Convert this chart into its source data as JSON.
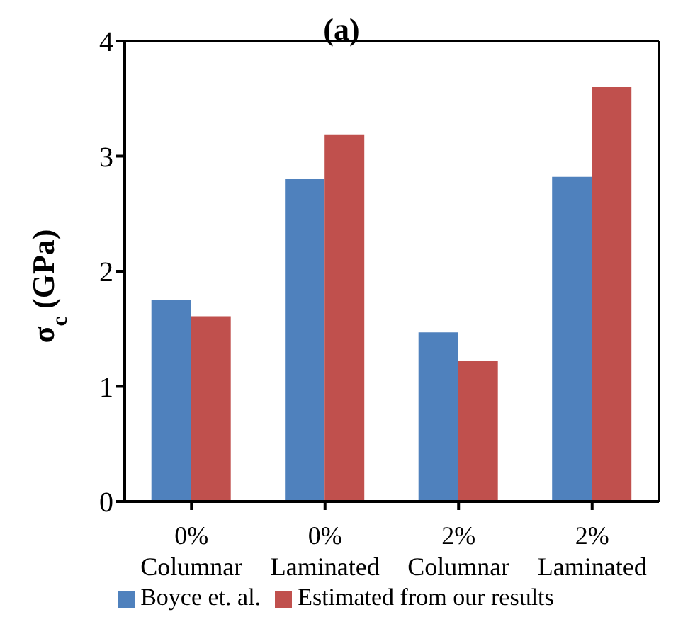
{
  "chart_data": {
    "type": "bar",
    "title": "(a)",
    "ylabel": "σ$_{c}$ (GPa)",
    "categories": [
      "0%\nColumnar",
      "0%\nLaminated",
      "2%\nColumnar",
      "2%\nLaminated"
    ],
    "series": [
      {
        "name": "Boyce et. al.",
        "color": "#4f81bd",
        "values": [
          1.75,
          2.8,
          1.47,
          2.82
        ]
      },
      {
        "name": "Estimated from our results",
        "color": "#c0504d",
        "values": [
          1.61,
          3.19,
          1.22,
          3.6
        ]
      }
    ],
    "ylim": [
      0,
      4
    ],
    "yticks": [
      0,
      1,
      2,
      3,
      4
    ],
    "grid": false,
    "legend": "bottom"
  }
}
